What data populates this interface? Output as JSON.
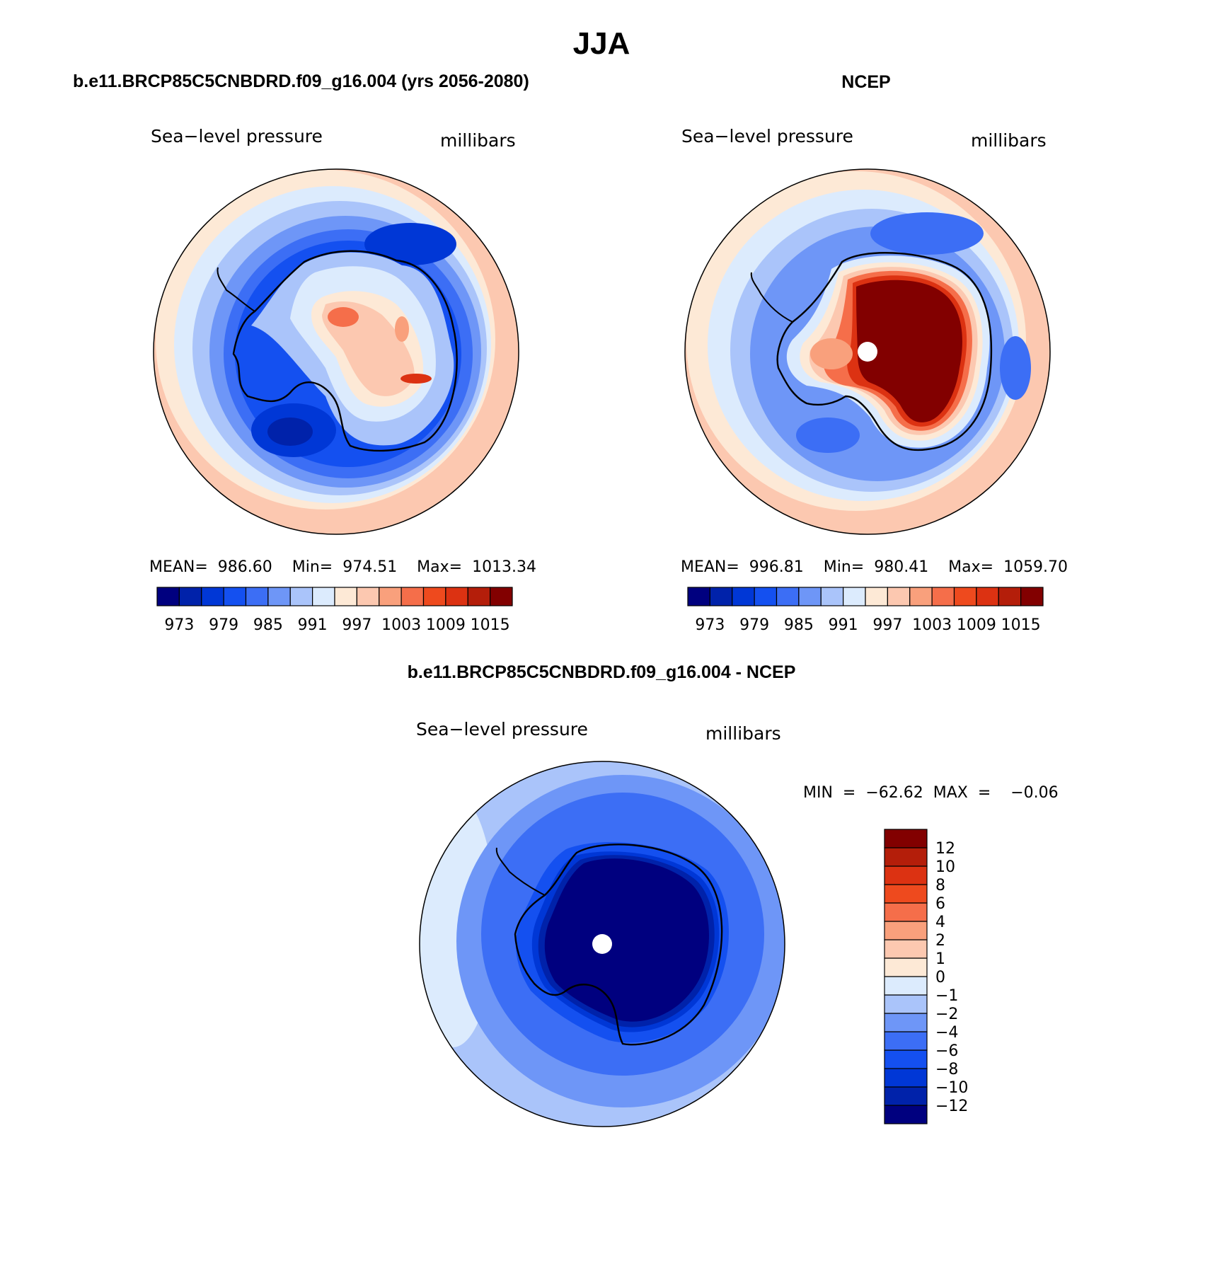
{
  "figure": {
    "title": "JJA",
    "coast_color": "#000000"
  },
  "palette_abs": [
    "#00007f",
    "#0022aa",
    "#0037d6",
    "#1450f0",
    "#3c6ef5",
    "#6e96f7",
    "#aac4fa",
    "#dcebfd",
    "#fde9d6",
    "#fcc8b0",
    "#f9a07c",
    "#f56e4a",
    "#ee4a1e",
    "#dc3212",
    "#b41e0a",
    "#820000"
  ],
  "palette_diff": [
    "#00007f",
    "#0022aa",
    "#0037d6",
    "#1450f0",
    "#3c6ef5",
    "#6e96f7",
    "#aac4fa",
    "#dcebfd",
    "#fde9d6",
    "#fcc8b0",
    "#f9a07c",
    "#f56e4a",
    "#ee4a1e",
    "#dc3212",
    "#b41e0a",
    "#820000"
  ],
  "panels": [
    {
      "heading": "b.e11.BRCP85C5CNBDRD.f09_g16.004 (yrs 2056-2080)",
      "var_label": "Sea−level pressure",
      "unit_label": "millibars",
      "stats": "MEAN=  986.60    Min=  974.51    Max=  1013.34",
      "colorbar_ticks": [
        "973",
        "979",
        "985",
        "991",
        "997",
        "1003",
        "1009",
        "1015"
      ]
    },
    {
      "heading": "NCEP",
      "var_label": "Sea−level pressure",
      "unit_label": "millibars",
      "stats": "MEAN=  996.81    Min=  980.41    Max=  1059.70",
      "colorbar_ticks": [
        "973",
        "979",
        "985",
        "991",
        "997",
        "1003",
        "1009",
        "1015"
      ]
    },
    {
      "heading": "b.e11.BRCP85C5CNBDRD.f09_g16.004 - NCEP",
      "var_label": "Sea−level pressure",
      "unit_label": "millibars",
      "stats": "MIN  =  −62.62  MAX  =    −0.06",
      "colorbar_ticks": [
        "12",
        "10",
        "8",
        "6",
        "4",
        "2",
        "1",
        "0",
        "−1",
        "−2",
        "−4",
        "−6",
        "−8",
        "−10",
        "−12"
      ]
    }
  ]
}
